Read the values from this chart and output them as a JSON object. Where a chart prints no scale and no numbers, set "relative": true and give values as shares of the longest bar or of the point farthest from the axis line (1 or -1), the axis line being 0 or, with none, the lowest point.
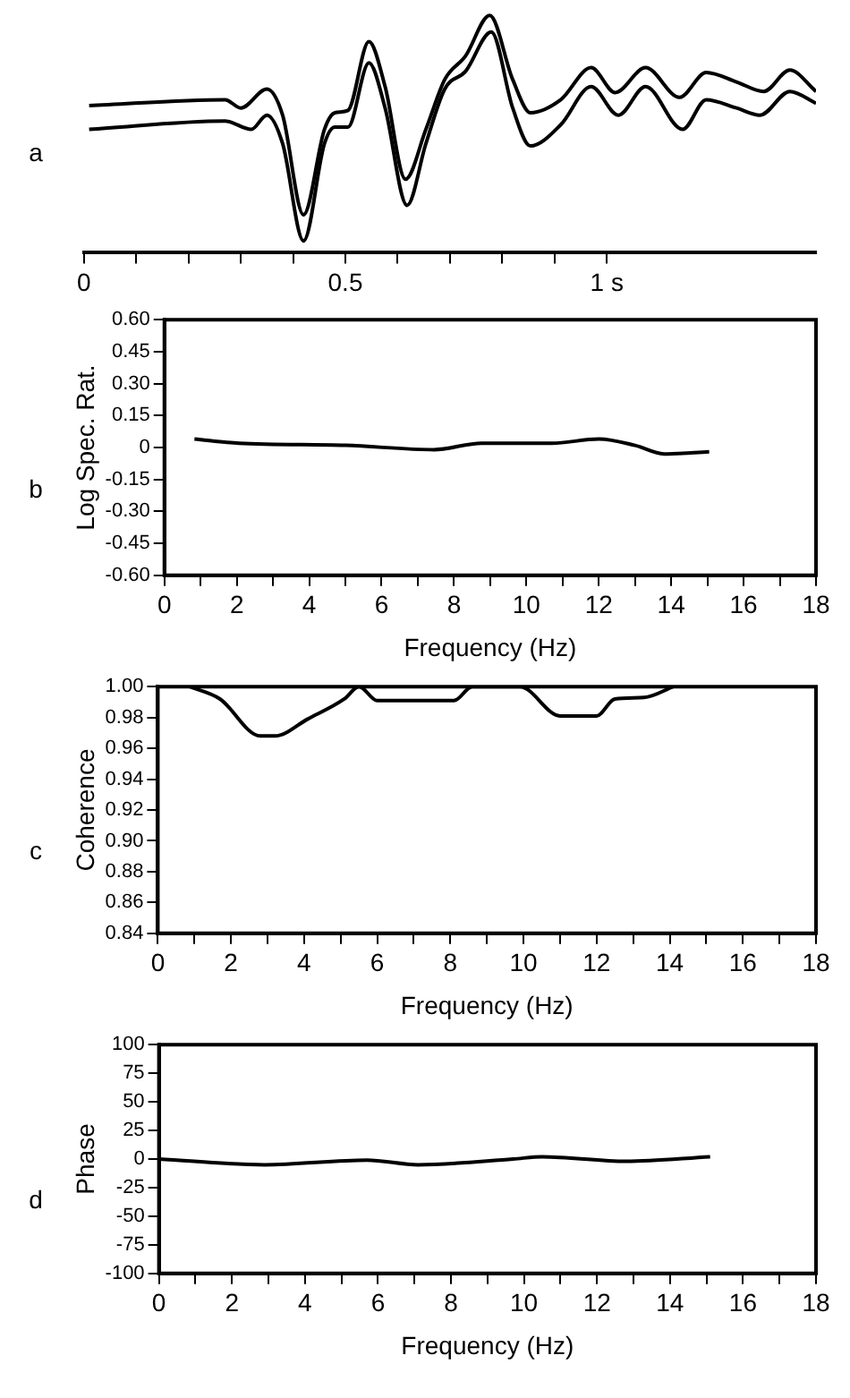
{
  "chart_data": [
    {
      "type": "line",
      "relative": true,
      "annotations": [
        "a"
      ],
      "marker": "none",
      "xlim": [
        0,
        1.4
      ],
      "xticks": [
        0,
        {
          "value": 0.1,
          "label": null
        },
        {
          "value": 0.2,
          "label": null
        },
        {
          "value": 0.3,
          "label": null
        },
        {
          "value": 0.4,
          "label": null
        },
        0.5,
        {
          "value": 0.6,
          "label": null
        },
        {
          "value": 0.7,
          "label": null
        },
        {
          "value": 0.8,
          "label": null
        },
        {
          "value": 0.9,
          "label": null
        },
        {
          "value": 1,
          "label": "1 s"
        }
      ],
      "series": [
        {
          "color": "#000000",
          "x": [
            0.01,
            0.27,
            0.3,
            0.35,
            0.38,
            0.42,
            0.46,
            0.48,
            0.505,
            0.545,
            0.576,
            0.615,
            0.654,
            0.69,
            0.73,
            0.776,
            0.82,
            0.854,
            0.912,
            0.97,
            1.016,
            1.074,
            1.139,
            1.19,
            1.248,
            1.3,
            1.35,
            1.4
          ],
          "values": [
            0.62,
            0.645,
            0.61,
            0.69,
            0.58,
            0.16,
            0.52,
            0.59,
            0.6,
            0.89,
            0.7,
            0.31,
            0.52,
            0.73,
            0.83,
            1.0,
            0.73,
            0.59,
            0.645,
            0.78,
            0.675,
            0.78,
            0.655,
            0.76,
            0.72,
            0.68,
            0.77,
            0.68
          ]
        },
        {
          "color": "#000000",
          "x": [
            0.01,
            0.27,
            0.32,
            0.35,
            0.38,
            0.42,
            0.46,
            0.48,
            0.505,
            0.545,
            0.576,
            0.618,
            0.654,
            0.69,
            0.73,
            0.779,
            0.82,
            0.854,
            0.912,
            0.97,
            1.022,
            1.074,
            1.145,
            1.19,
            1.248,
            1.293,
            1.35,
            1.4
          ],
          "values": [
            0.52,
            0.555,
            0.52,
            0.58,
            0.46,
            0.05,
            0.46,
            0.53,
            0.53,
            0.8,
            0.61,
            0.2,
            0.46,
            0.69,
            0.765,
            0.93,
            0.61,
            0.45,
            0.54,
            0.7,
            0.58,
            0.7,
            0.52,
            0.645,
            0.61,
            0.58,
            0.68,
            0.63
          ]
        }
      ]
    },
    {
      "type": "line",
      "annotations": [
        "b"
      ],
      "ylabel": "Log Spec. Rat.",
      "xlabel": "Frequency (Hz)",
      "marker": "none",
      "xlim": [
        0,
        18
      ],
      "ylim": [
        -0.6,
        0.6
      ],
      "xticks": [
        0,
        {
          "value": 1,
          "label": null
        },
        2,
        {
          "value": 3,
          "label": null
        },
        4,
        {
          "value": 5,
          "label": null
        },
        6,
        {
          "value": 7,
          "label": null
        },
        8,
        {
          "value": 9,
          "label": null
        },
        10,
        {
          "value": 11,
          "label": null
        },
        12,
        {
          "value": 13,
          "label": null
        },
        14,
        {
          "value": 15,
          "label": null
        },
        16,
        {
          "value": 17,
          "label": null
        },
        18
      ],
      "yticks": [
        {
          "value": -0.6,
          "label": "-0.60"
        },
        {
          "value": -0.45,
          "label": "-0.45"
        },
        {
          "value": -0.3,
          "label": "-0.30"
        },
        {
          "value": -0.15,
          "label": "-0.15"
        },
        0,
        {
          "value": 0.15,
          "label": "0.15"
        },
        {
          "value": 0.3,
          "label": "0.30"
        },
        {
          "value": 0.45,
          "label": "0.45"
        },
        {
          "value": 0.6,
          "label": "0.60"
        }
      ],
      "series": [
        {
          "color": "#000000",
          "x": [
            0.83,
            2.06,
            5,
            7.45,
            8.76,
            10.7,
            12,
            13,
            13.8,
            15.05
          ],
          "values": [
            0.04,
            0.02,
            0.01,
            -0.01,
            0.02,
            0.02,
            0.04,
            0.01,
            -0.03,
            -0.02
          ]
        }
      ]
    },
    {
      "type": "line",
      "annotations": [
        "c"
      ],
      "ylabel": "Coherence",
      "xlabel": "Frequency (Hz)",
      "marker": "none",
      "xlim": [
        0,
        18
      ],
      "ylim": [
        0.84,
        1.0
      ],
      "xticks": [
        0,
        {
          "value": 1,
          "label": null
        },
        2,
        {
          "value": 3,
          "label": null
        },
        4,
        {
          "value": 5,
          "label": null
        },
        6,
        {
          "value": 7,
          "label": null
        },
        8,
        {
          "value": 9,
          "label": null
        },
        10,
        {
          "value": 11,
          "label": null
        },
        12,
        {
          "value": 13,
          "label": null
        },
        14,
        {
          "value": 15,
          "label": null
        },
        16,
        {
          "value": 17,
          "label": null
        },
        18
      ],
      "yticks": [
        {
          "value": 0.84,
          "label": "0.84"
        },
        {
          "value": 0.86,
          "label": "0.86"
        },
        {
          "value": 0.88,
          "label": "0.88"
        },
        {
          "value": 0.9,
          "label": "0.90"
        },
        {
          "value": 0.92,
          "label": "0.92"
        },
        {
          "value": 0.94,
          "label": "0.94"
        },
        {
          "value": 0.96,
          "label": "0.96"
        },
        {
          "value": 0.98,
          "label": "0.98"
        },
        {
          "value": 1.0,
          "label": "1.00"
        }
      ],
      "series": [
        {
          "color": "#000000",
          "x": [
            0.87,
            1.7,
            2.8,
            3.2,
            4.1,
            5.1,
            5.5,
            6,
            8.1,
            8.6,
            9.9,
            11,
            12,
            12.5,
            13.3,
            14.1
          ],
          "values": [
            1.0,
            0.992,
            0.968,
            0.968,
            0.979,
            0.992,
            1.0,
            0.991,
            0.991,
            1.0,
            1.0,
            0.981,
            0.981,
            0.992,
            0.993,
            1.0
          ]
        }
      ]
    },
    {
      "type": "line",
      "annotations": [
        "d"
      ],
      "ylabel": "Phase",
      "xlabel": "Frequency (Hz)",
      "marker": "none",
      "xlim": [
        0,
        18
      ],
      "ylim": [
        -100,
        100
      ],
      "xticks": [
        0,
        {
          "value": 1,
          "label": null
        },
        2,
        {
          "value": 3,
          "label": null
        },
        4,
        {
          "value": 5,
          "label": null
        },
        6,
        {
          "value": 7,
          "label": null
        },
        8,
        {
          "value": 9,
          "label": null
        },
        10,
        {
          "value": 11,
          "label": null
        },
        12,
        {
          "value": 13,
          "label": null
        },
        14,
        {
          "value": 15,
          "label": null
        },
        16,
        {
          "value": 17,
          "label": null
        },
        18
      ],
      "yticks": [
        -100,
        -75,
        -50,
        -25,
        0,
        25,
        50,
        75,
        100
      ],
      "series": [
        {
          "color": "#000000",
          "x": [
            0,
            2.9,
            5.7,
            7.1,
            9.7,
            10.5,
            12.8,
            15.1
          ],
          "values": [
            0,
            -5,
            -1,
            -5,
            0,
            2,
            -2,
            2
          ]
        }
      ]
    }
  ]
}
